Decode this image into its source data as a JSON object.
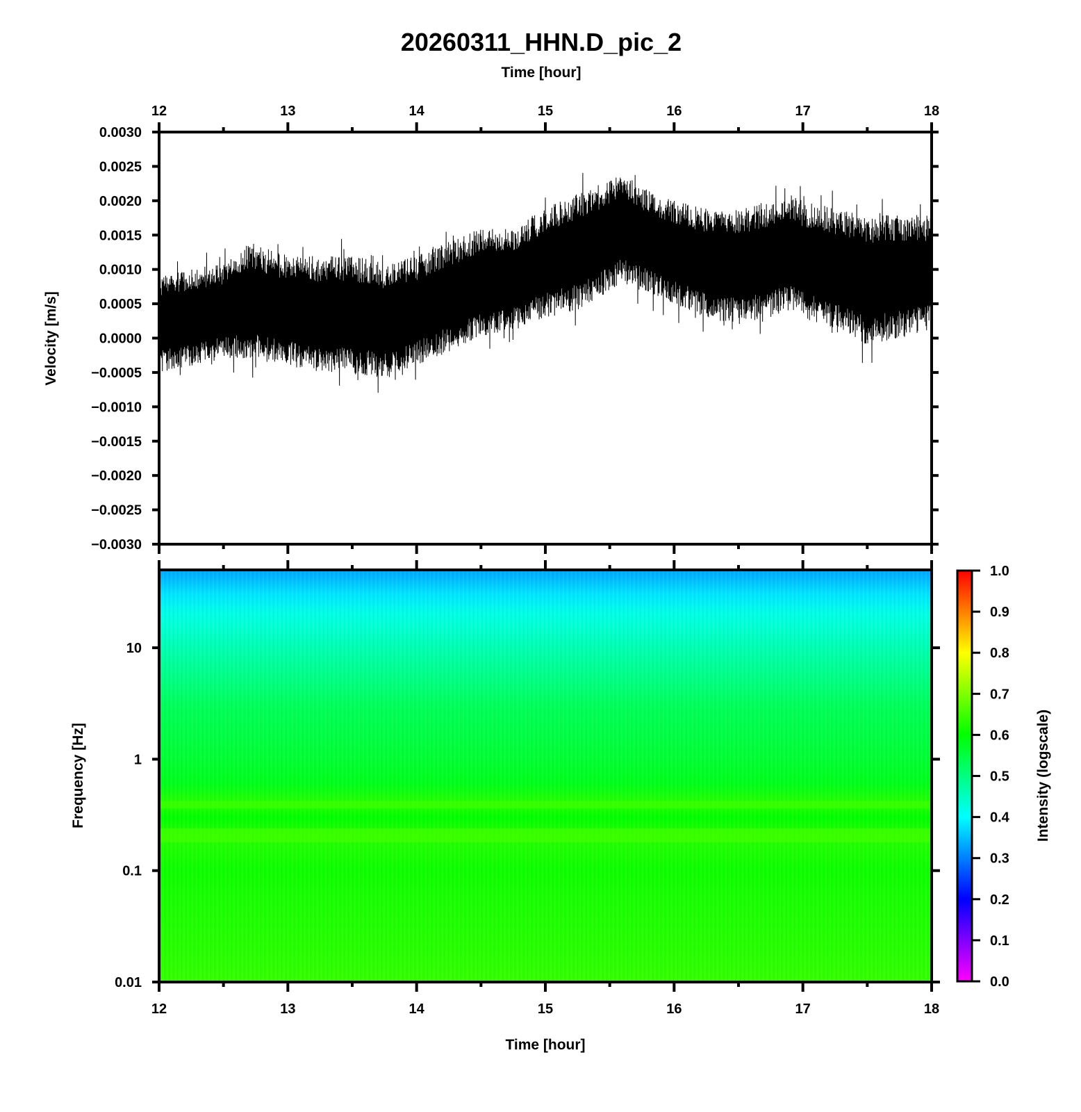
{
  "title": "20260311_HHN.D_pic_2",
  "chart_data": [
    {
      "type": "line",
      "panel": "waveform",
      "xlabel": "Time [hour]",
      "ylabel": "Velocity [m/s]",
      "xlim": [
        12,
        18
      ],
      "ylim": [
        -0.003,
        0.003
      ],
      "x_ticks": [
        12,
        13,
        14,
        15,
        16,
        17,
        18
      ],
      "x_tick_labels": [
        "12",
        "13",
        "14",
        "15",
        "16",
        "17",
        "18"
      ],
      "y_ticks": [
        0.003,
        0.0025,
        0.002,
        0.0015,
        0.001,
        0.0005,
        0.0,
        -0.0005,
        -0.001,
        -0.0015,
        -0.002,
        -0.0025,
        -0.003
      ],
      "y_tick_labels": [
        "0.0030",
        "0.0025",
        "0.0020",
        "0.0015",
        "0.0010",
        "0.0005",
        "0.0000",
        "−0.0005",
        "−0.0010",
        "−0.0015",
        "−0.0020",
        "−0.0025",
        "−0.0030"
      ],
      "envelope": {
        "x": [
          12.0,
          12.25,
          12.5,
          12.7,
          13.0,
          13.25,
          13.5,
          13.75,
          14.0,
          14.25,
          14.5,
          14.75,
          15.0,
          15.25,
          15.5,
          15.6,
          15.75,
          16.0,
          16.25,
          16.5,
          16.75,
          16.9,
          17.0,
          17.25,
          17.5,
          17.75,
          18.0
        ],
        "upper": [
          0.0009,
          0.001,
          0.0011,
          0.0014,
          0.0012,
          0.0012,
          0.0012,
          0.0011,
          0.0012,
          0.0014,
          0.0016,
          0.0016,
          0.0019,
          0.0021,
          0.0023,
          0.0024,
          0.0022,
          0.002,
          0.0019,
          0.0019,
          0.002,
          0.0021,
          0.002,
          0.0019,
          0.0018,
          0.0018,
          0.0018
        ],
        "lower": [
          -0.0005,
          -0.0004,
          -0.0003,
          -0.0003,
          -0.0004,
          -0.0005,
          -0.0005,
          -0.0006,
          -0.0004,
          -0.0002,
          0.0,
          0.0001,
          0.0003,
          0.0004,
          0.0007,
          0.0008,
          0.0007,
          0.0005,
          0.0003,
          0.0002,
          0.0003,
          0.0004,
          0.0003,
          0.0001,
          -0.0001,
          0.0,
          0.0001
        ]
      }
    },
    {
      "type": "heatmap",
      "panel": "spectrogram",
      "xlabel": "Time [hour]",
      "ylabel": "Frequency [Hz]",
      "xlim": [
        12,
        18
      ],
      "ylim": [
        0.01,
        50
      ],
      "y_scale": "log",
      "x_ticks": [
        12,
        13,
        14,
        15,
        16,
        17,
        18
      ],
      "x_tick_labels": [
        "12",
        "13",
        "14",
        "15",
        "16",
        "17",
        "18"
      ],
      "y_ticks": [
        0.01,
        0.1,
        1,
        10
      ],
      "y_tick_labels": [
        "0.01",
        "0.1",
        "1",
        "10"
      ],
      "intensity_profile": {
        "frequency_hz": [
          0.01,
          0.02,
          0.05,
          0.1,
          0.2,
          0.3,
          0.4,
          0.6,
          1,
          3,
          10,
          20,
          30,
          40,
          50
        ],
        "intensity": [
          0.64,
          0.63,
          0.62,
          0.61,
          0.63,
          0.6,
          0.63,
          0.58,
          0.56,
          0.53,
          0.46,
          0.42,
          0.38,
          0.35,
          0.33
        ]
      },
      "colorbar": {
        "label": "Intensity (logscale)",
        "range": [
          0.0,
          1.0
        ],
        "ticks": [
          0.0,
          0.1,
          0.2,
          0.3,
          0.4,
          0.5,
          0.6,
          0.7,
          0.8,
          0.9,
          1.0
        ],
        "tick_labels": [
          "0.0",
          "0.1",
          "0.2",
          "0.3",
          "0.4",
          "0.5",
          "0.6",
          "0.7",
          "0.8",
          "0.9",
          "1.0"
        ],
        "colormap": [
          "#ff00ff",
          "#0000ff",
          "#00ffff",
          "#00ff00",
          "#ffff00",
          "#ff0000"
        ]
      }
    }
  ]
}
